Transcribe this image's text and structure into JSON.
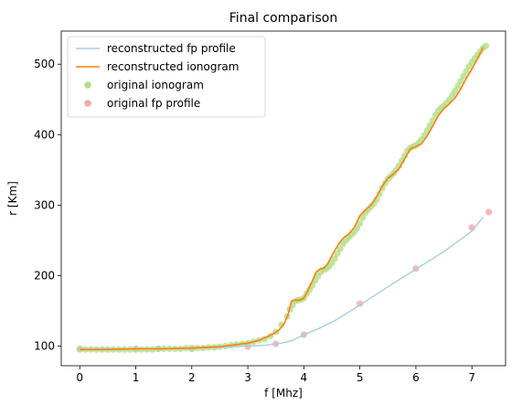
{
  "chart_data": {
    "type": "line",
    "title": "Final comparison",
    "xlabel": "f [Mhz]",
    "ylabel": "r [Km]",
    "xlim": [
      -0.33,
      7.6
    ],
    "ylim": [
      72,
      547
    ],
    "xticks": [
      0,
      1,
      2,
      3,
      4,
      5,
      6,
      7
    ],
    "yticks": [
      100,
      200,
      300,
      400,
      500
    ],
    "grid": false,
    "legend_position": "upper-left",
    "series": [
      {
        "name": "reconstructed fp profile",
        "kind": "line",
        "color": "#a6cee3",
        "x": [
          0,
          0.5,
          1,
          1.4,
          2,
          2.5,
          3,
          3.3,
          3.6,
          3.8,
          4.0,
          4.3,
          4.6,
          5.0,
          5.5,
          6.0,
          6.5,
          7.0,
          7.2
        ],
        "y": [
          96,
          96,
          96,
          96,
          97,
          98,
          100,
          101,
          104,
          108,
          116,
          126,
          138,
          158,
          184,
          209,
          234,
          263,
          283
        ]
      },
      {
        "name": "reconstructed ionogram",
        "kind": "line",
        "color": "#ff7f0e",
        "x": [
          0,
          0.5,
          1.0,
          1.5,
          2.0,
          2.5,
          2.8,
          3.0,
          3.2,
          3.4,
          3.55,
          3.65,
          3.72,
          3.78,
          3.85,
          3.93,
          4.0,
          4.08,
          4.15,
          4.22,
          4.3,
          4.35,
          4.42,
          4.5,
          4.6,
          4.7,
          4.8,
          4.9,
          5.0,
          5.1,
          5.2,
          5.3,
          5.4,
          5.5,
          5.6,
          5.7,
          5.8,
          5.9,
          6.0,
          6.1,
          6.2,
          6.3,
          6.4,
          6.5,
          6.6,
          6.7,
          6.8,
          6.9,
          7.0,
          7.1,
          7.2
        ],
        "y": [
          95,
          95,
          96,
          96,
          97,
          99,
          102,
          104,
          108,
          115,
          122,
          132,
          145,
          164,
          165,
          165,
          168,
          180,
          192,
          205,
          210,
          210,
          216,
          228,
          242,
          253,
          259,
          268,
          285,
          293,
          300,
          312,
          327,
          338,
          344,
          352,
          366,
          380,
          383,
          387,
          398,
          412,
          427,
          437,
          444,
          452,
          465,
          480,
          493,
          508,
          524
        ]
      },
      {
        "name": "original ionogram",
        "kind": "scatter",
        "color": "#b2df8a",
        "x": [
          0.0,
          0.1,
          0.2,
          0.3,
          0.4,
          0.5,
          0.6,
          0.7,
          0.8,
          0.9,
          1.0,
          1.1,
          1.2,
          1.3,
          1.4,
          1.5,
          1.6,
          1.7,
          1.8,
          1.9,
          2.0,
          2.1,
          2.2,
          2.3,
          2.4,
          2.5,
          2.6,
          2.7,
          2.8,
          2.9,
          3.0,
          3.1,
          3.2,
          3.3,
          3.4,
          3.5,
          3.6,
          3.7,
          3.75,
          3.8,
          3.85,
          3.9,
          3.95,
          4.0,
          4.05,
          4.1,
          4.15,
          4.2,
          4.25,
          4.3,
          4.35,
          4.4,
          4.45,
          4.5,
          4.55,
          4.6,
          4.65,
          4.7,
          4.75,
          4.8,
          4.85,
          4.9,
          4.95,
          5.0,
          5.05,
          5.1,
          5.15,
          5.2,
          5.25,
          5.3,
          5.35,
          5.4,
          5.45,
          5.5,
          5.55,
          5.6,
          5.65,
          5.7,
          5.75,
          5.8,
          5.85,
          5.9,
          5.95,
          6.0,
          6.05,
          6.1,
          6.15,
          6.2,
          6.25,
          6.3,
          6.35,
          6.4,
          6.45,
          6.5,
          6.55,
          6.6,
          6.65,
          6.7,
          6.75,
          6.8,
          6.85,
          6.9,
          6.95,
          7.0,
          7.05,
          7.1,
          7.15,
          7.2,
          7.25
        ],
        "y": [
          95,
          95,
          95,
          95,
          95,
          95,
          95,
          95,
          95,
          95,
          95,
          95,
          95,
          95,
          96,
          96,
          96,
          96,
          96,
          97,
          97,
          97,
          97,
          98,
          98,
          99,
          100,
          101,
          102,
          103,
          104,
          106,
          108,
          110,
          114,
          120,
          130,
          142,
          152,
          158,
          164,
          165,
          166,
          168,
          174,
          180,
          186,
          193,
          199,
          205,
          208,
          210,
          213,
          218,
          224,
          231,
          238,
          245,
          250,
          254,
          258,
          262,
          267,
          274,
          282,
          289,
          294,
          298,
          302,
          308,
          316,
          324,
          331,
          337,
          341,
          345,
          350,
          356,
          363,
          370,
          377,
          381,
          383,
          385,
          388,
          393,
          399,
          406,
          413,
          420,
          428,
          434,
          438,
          441,
          445,
          450,
          456,
          462,
          469,
          476,
          483,
          490,
          497,
          503,
          508,
          513,
          518,
          523,
          526
        ]
      },
      {
        "name": "original fp profile",
        "kind": "scatter",
        "color": "#f4a8a8",
        "x": [
          0,
          1,
          1.4,
          2,
          3,
          3.5,
          4,
          5,
          6,
          7,
          7.3
        ],
        "y": [
          96,
          96,
          96,
          96,
          99,
          103,
          116,
          160,
          210,
          268,
          290
        ]
      }
    ]
  }
}
